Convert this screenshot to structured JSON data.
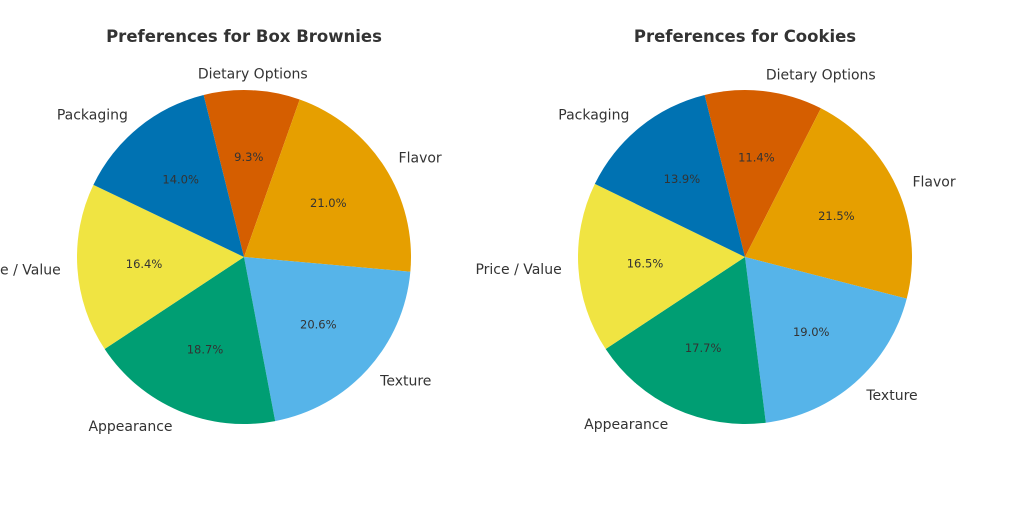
{
  "chart_data": [
    {
      "type": "pie",
      "title": "Preferences for Box Brownies",
      "slices": [
        {
          "label": "Packaging",
          "value": 14.0,
          "pct_text": "14.0%",
          "color": "#0072B2"
        },
        {
          "label": "Price / Value",
          "value": 16.4,
          "pct_text": "16.4%",
          "color": "#F0E442"
        },
        {
          "label": "Appearance",
          "value": 18.7,
          "pct_text": "18.7%",
          "color": "#009E73"
        },
        {
          "label": "Texture",
          "value": 20.6,
          "pct_text": "20.6%",
          "color": "#56B4E9"
        },
        {
          "label": "Flavor",
          "value": 21.0,
          "pct_text": "21.0%",
          "color": "#E69F00"
        },
        {
          "label": "Dietary Options",
          "value": 9.3,
          "pct_text": "9.3%",
          "color": "#D55E00"
        }
      ]
    },
    {
      "type": "pie",
      "title": "Preferences for Cookies",
      "slices": [
        {
          "label": "Packaging",
          "value": 13.9,
          "pct_text": "13.9%",
          "color": "#0072B2"
        },
        {
          "label": "Price / Value",
          "value": 16.5,
          "pct_text": "16.5%",
          "color": "#F0E442"
        },
        {
          "label": "Appearance",
          "value": 17.7,
          "pct_text": "17.7%",
          "color": "#009E73"
        },
        {
          "label": "Texture",
          "value": 19.0,
          "pct_text": "19.0%",
          "color": "#56B4E9"
        },
        {
          "label": "Flavor",
          "value": 21.5,
          "pct_text": "21.5%",
          "color": "#E69F00"
        },
        {
          "label": "Dietary Options",
          "value": 11.4,
          "pct_text": "11.4%",
          "color": "#D55E00"
        }
      ]
    }
  ]
}
